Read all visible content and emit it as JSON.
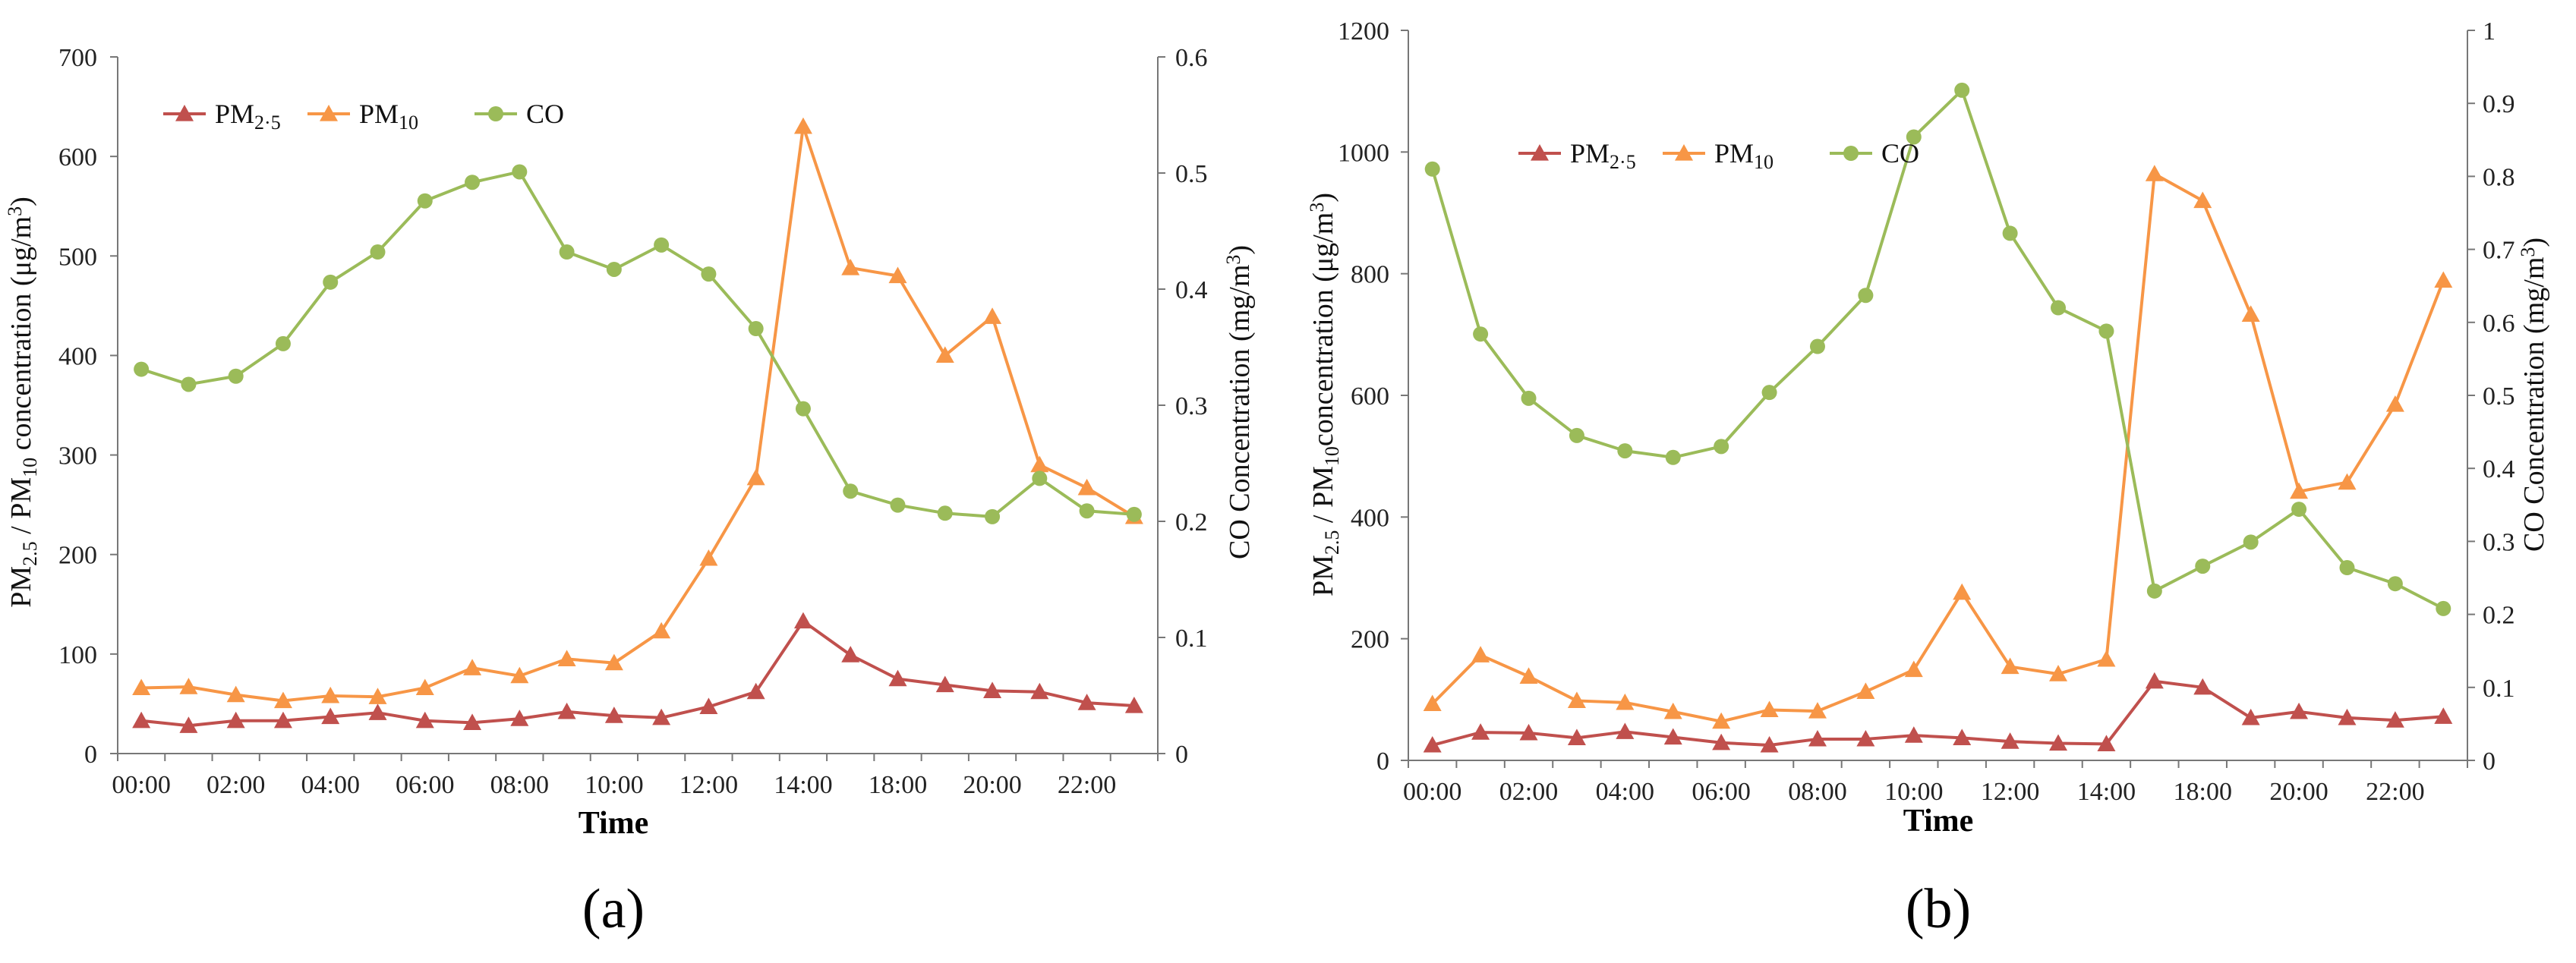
{
  "chart_data": [
    {
      "type": "line",
      "panel_label": "(a)",
      "xlabel": "Time",
      "ylabel_left": "PM2.5 / PM10 concentration (μg/m3)",
      "ylabel_left_parts": [
        "PM",
        "2.5",
        " / PM",
        "10",
        " concentration (μg/m",
        "3",
        ")"
      ],
      "ylabel_right": "CO Concentration (mg/m3)",
      "ylabel_right_parts": [
        "CO Concentration (mg/m",
        "3",
        ")"
      ],
      "ylim_left": [
        0,
        700
      ],
      "yticks_left": [
        "0",
        "100",
        "200",
        "300",
        "400",
        "500",
        "600",
        "700"
      ],
      "ylim_right": [
        0,
        0.6
      ],
      "yticks_right": [
        "0",
        "0.1",
        "0.2",
        "0.3",
        "0.4",
        "0.5",
        "0.6"
      ],
      "x": [
        "00:00",
        "01:00",
        "02:00",
        "03:00",
        "04:00",
        "05:00",
        "06:00",
        "07:00",
        "08:00",
        "09:00",
        "10:00",
        "11:00",
        "12:00",
        "13:00",
        "14:00",
        "15:00",
        "18:00",
        "19:00",
        "20:00",
        "21:00",
        "22:00",
        "23:00"
      ],
      "xtick_labels": [
        "00:00",
        "02:00",
        "04:00",
        "06:00",
        "08:00",
        "10:00",
        "12:00",
        "14:00",
        "18:00",
        "20:00",
        "22:00"
      ],
      "legend": [
        {
          "name": "PM2.5",
          "base": "PM",
          "sub": "2·5"
        },
        {
          "name": "PM10",
          "base": "PM",
          "sub": "10"
        },
        {
          "name": "CO",
          "base": "CO",
          "sub": ""
        }
      ],
      "series": [
        {
          "name": "PM2.5",
          "axis": "left",
          "color": "#c0504d",
          "marker": "triangle",
          "values": [
            33,
            28,
            33,
            33,
            37,
            41,
            33,
            31,
            35,
            42,
            38,
            36,
            47,
            62,
            133,
            99,
            75,
            69,
            63,
            62,
            51,
            48
          ]
        },
        {
          "name": "PM10",
          "axis": "left",
          "color": "#f79646",
          "marker": "triangle",
          "values": [
            66,
            67,
            59,
            53,
            58,
            57,
            66,
            86,
            78,
            95,
            91,
            123,
            196,
            277,
            630,
            488,
            480,
            400,
            439,
            290,
            267,
            238
          ]
        },
        {
          "name": "CO",
          "axis": "right",
          "color": "#9bbb59",
          "marker": "circle",
          "values": [
            0.331,
            0.318,
            0.325,
            0.353,
            0.406,
            0.432,
            0.476,
            0.492,
            0.501,
            0.432,
            0.417,
            0.438,
            0.413,
            0.366,
            0.297,
            0.226,
            0.214,
            0.207,
            0.204,
            0.237,
            0.209,
            0.206
          ]
        }
      ]
    },
    {
      "type": "line",
      "panel_label": "(b)",
      "xlabel": "Time",
      "ylabel_left": "PM2.5 / PM10concentration (μg/m3)",
      "ylabel_left_parts": [
        "PM",
        "2.5",
        " / PM",
        "10",
        "concentration (μg/m",
        "3",
        ")"
      ],
      "ylabel_right": "CO Concentration (mg/m3)",
      "ylabel_right_parts": [
        "CO Concentration (mg/m",
        "3",
        ")"
      ],
      "ylim_left": [
        0,
        1200
      ],
      "yticks_left": [
        "0",
        "200",
        "400",
        "600",
        "800",
        "1000",
        "1200"
      ],
      "ylim_right": [
        0,
        1
      ],
      "yticks_right": [
        "0",
        "0.1",
        "0.2",
        "0.3",
        "0.4",
        "0.5",
        "0.6",
        "0.7",
        "0.8",
        "0.9",
        "1"
      ],
      "x": [
        "00:00",
        "01:00",
        "02:00",
        "03:00",
        "04:00",
        "05:00",
        "06:00",
        "07:00",
        "08:00",
        "09:00",
        "10:00",
        "11:00",
        "12:00",
        "13:00",
        "14:00",
        "17:00",
        "18:00",
        "19:00",
        "20:00",
        "21:00",
        "22:00",
        "23:00"
      ],
      "xtick_labels": [
        "00:00",
        "02:00",
        "04:00",
        "06:00",
        "08:00",
        "10:00",
        "12:00",
        "14:00",
        "18:00",
        "20:00",
        "22:00"
      ],
      "legend": [
        {
          "name": "PM2.5",
          "base": "PM",
          "sub": "2·5"
        },
        {
          "name": "PM10",
          "base": "PM",
          "sub": "10"
        },
        {
          "name": "CO",
          "base": "CO",
          "sub": ""
        }
      ],
      "series": [
        {
          "name": "PM2.5",
          "axis": "left",
          "color": "#c0504d",
          "marker": "triangle",
          "values": [
            25,
            46,
            45,
            37,
            47,
            38,
            29,
            25,
            35,
            35,
            41,
            37,
            31,
            28,
            27,
            130,
            120,
            70,
            80,
            70,
            66,
            72
          ]
        },
        {
          "name": "PM10",
          "axis": "left",
          "color": "#f79646",
          "marker": "triangle",
          "values": [
            93,
            173,
            138,
            98,
            95,
            80,
            64,
            83,
            81,
            113,
            149,
            276,
            154,
            142,
            166,
            964,
            920,
            733,
            442,
            457,
            585,
            789
          ]
        },
        {
          "name": "CO",
          "axis": "right",
          "color": "#9bbb59",
          "marker": "circle",
          "values": [
            0.81,
            0.584,
            0.496,
            0.445,
            0.424,
            0.415,
            0.43,
            0.504,
            0.567,
            0.637,
            0.854,
            0.918,
            0.722,
            0.62,
            0.588,
            0.232,
            0.266,
            0.299,
            0.344,
            0.264,
            0.242,
            0.208
          ]
        }
      ]
    }
  ]
}
